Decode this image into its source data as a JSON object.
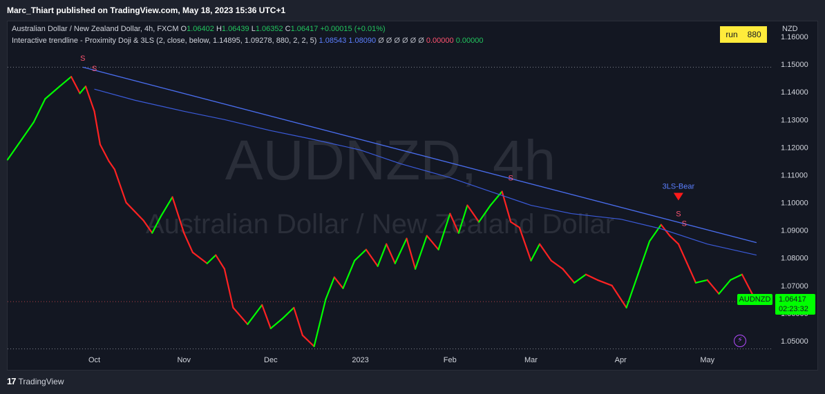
{
  "header": {
    "published": "Marc_Thiart published on TradingView.com, May 18, 2023 15:36 UTC+1"
  },
  "legend": {
    "symbol_desc": "Australian Dollar / New Zealand Dollar, 4h, FXCM",
    "o_label": "O",
    "o_value": "1.06402",
    "h_label": "H",
    "h_value": "1.06439",
    "l_label": "L",
    "l_value": "1.06352",
    "c_label": "C",
    "c_value": "1.06417",
    "change": "+0.00015 (+0.01%)",
    "indicator": "Interactive trendline - Proximity Doji & 3LS (2, close, below, 1.14895, 1.09278, 880, 2, 2, 5)",
    "ind_v1": "1.08543",
    "ind_v2": "1.08090",
    "ind_empty": "Ø Ø Ø Ø Ø Ø",
    "ind_v3": "0.00000",
    "ind_v4": "0.00000"
  },
  "run_badge": {
    "label": "run",
    "value": "880"
  },
  "axis_unit": "NZD",
  "price_tag": {
    "symbol": "AUDNZD",
    "price": "1.06417",
    "countdown": "02:23:32"
  },
  "watermark": {
    "line1": "AUDNZD, 4h",
    "line2": "Australian Dollar / New Zealand Dollar"
  },
  "footer": {
    "brand": "TradingView",
    "logo": "17"
  },
  "colors": {
    "background": "#131722",
    "up": "#00ff00",
    "down": "#ff2222",
    "trendline": "#4a6ef0",
    "ma_line": "#3b5bdb",
    "signal": "#ff5370",
    "badge": "#ffeb3b"
  },
  "chart_data": {
    "type": "line",
    "title": "Australian Dollar / New Zealand Dollar, 4h, FXCM",
    "xlabel": "",
    "ylabel": "NZD",
    "ylim": [
      1.0465,
      1.1655
    ],
    "yticks": [
      1.05,
      1.06,
      1.07,
      1.08,
      1.09,
      1.1,
      1.11,
      1.12,
      1.13,
      1.14,
      1.15,
      1.16
    ],
    "ytick_labels": [
      "1.05000",
      "1.06000",
      "1.07000",
      "1.08000",
      "1.09000",
      "1.10000",
      "1.11000",
      "1.12000",
      "1.13000",
      "1.14000",
      "1.15000",
      "1.16000"
    ],
    "xtick_labels": [
      "Oct",
      "Nov",
      "Dec",
      "2023",
      "Feb",
      "Mar",
      "Apr",
      "May"
    ],
    "xtick_dates": [
      "2022-10-01",
      "2022-11-01",
      "2022-12-01",
      "2023-01-01",
      "2023-02-01",
      "2023-03-01",
      "2023-04-01",
      "2023-05-01"
    ],
    "xlim": [
      "2022-09-01",
      "2023-05-24"
    ],
    "price_series": {
      "dates": [
        "2022-09-01",
        "2022-09-06",
        "2022-09-10",
        "2022-09-14",
        "2022-09-19",
        "2022-09-23",
        "2022-09-26",
        "2022-09-28",
        "2022-10-01",
        "2022-10-03",
        "2022-10-06",
        "2022-10-08",
        "2022-10-12",
        "2022-10-18",
        "2022-10-21",
        "2022-10-24",
        "2022-10-28",
        "2022-11-01",
        "2022-11-04",
        "2022-11-09",
        "2022-11-12",
        "2022-11-15",
        "2022-11-18",
        "2022-11-23",
        "2022-11-28",
        "2022-12-01",
        "2022-12-05",
        "2022-12-09",
        "2022-12-12",
        "2022-12-16",
        "2022-12-20",
        "2022-12-23",
        "2022-12-26",
        "2022-12-30",
        "2023-01-03",
        "2023-01-07",
        "2023-01-10",
        "2023-01-13",
        "2023-01-17",
        "2023-01-20",
        "2023-01-24",
        "2023-01-28",
        "2023-02-01",
        "2023-02-04",
        "2023-02-07",
        "2023-02-11",
        "2023-02-15",
        "2023-02-19",
        "2023-02-22",
        "2023-02-25",
        "2023-03-01",
        "2023-03-04",
        "2023-03-08",
        "2023-03-12",
        "2023-03-16",
        "2023-03-20",
        "2023-03-24",
        "2023-03-29",
        "2023-04-03",
        "2023-04-07",
        "2023-04-11",
        "2023-04-15",
        "2023-04-18",
        "2023-04-21",
        "2023-04-24",
        "2023-04-27",
        "2023-05-01",
        "2023-05-05",
        "2023-05-09",
        "2023-05-13",
        "2023-05-18"
      ],
      "values": [
        1.1155,
        1.123,
        1.129,
        1.1375,
        1.142,
        1.1455,
        1.1395,
        1.142,
        1.133,
        1.121,
        1.115,
        1.112,
        1.1,
        1.0935,
        1.089,
        1.095,
        1.102,
        1.089,
        1.082,
        1.078,
        1.081,
        1.076,
        1.062,
        1.056,
        1.063,
        1.0545,
        1.058,
        1.062,
        1.052,
        1.048,
        1.065,
        1.073,
        1.069,
        1.079,
        1.083,
        1.077,
        1.085,
        1.078,
        1.087,
        1.076,
        1.088,
        1.083,
        1.096,
        1.089,
        1.099,
        1.093,
        1.099,
        1.104,
        1.093,
        1.091,
        1.079,
        1.085,
        1.079,
        1.076,
        1.071,
        1.074,
        1.072,
        1.07,
        1.062,
        1.074,
        1.086,
        1.092,
        1.088,
        1.085,
        1.078,
        1.071,
        1.072,
        1.067,
        1.072,
        1.074,
        1.064
      ]
    },
    "ma_series": {
      "name": "",
      "dates": [
        "2022-10-01",
        "2022-10-15",
        "2022-11-01",
        "2022-11-15",
        "2022-12-01",
        "2022-12-15",
        "2023-01-01",
        "2023-01-15",
        "2023-02-01",
        "2023-02-15",
        "2023-03-01",
        "2023-03-15",
        "2023-04-01",
        "2023-04-15",
        "2023-05-01",
        "2023-05-18"
      ],
      "values": [
        1.141,
        1.137,
        1.133,
        1.13,
        1.126,
        1.123,
        1.119,
        1.114,
        1.109,
        1.104,
        1.099,
        1.096,
        1.094,
        1.0905,
        1.085,
        1.081
      ]
    },
    "trendline": {
      "x": [
        "2022-09-27",
        "2023-05-18"
      ],
      "y": [
        1.14895,
        1.0855
      ]
    },
    "horizontal_lines": [
      1.14895,
      1.06417,
      1.0471
    ],
    "annotations": [
      {
        "date": "2022-09-27",
        "price": 1.1513,
        "text": "S"
      },
      {
        "date": "2022-10-01",
        "price": 1.1475,
        "text": "S"
      },
      {
        "date": "2023-02-22",
        "price": 1.108,
        "text": "S"
      },
      {
        "date": "2023-04-21",
        "price": 1.095,
        "text": "S"
      },
      {
        "date": "2023-04-23",
        "price": 1.0915,
        "text": "S"
      },
      {
        "date": "2023-04-21",
        "price": 1.1,
        "text": "3LS-Bear"
      }
    ]
  }
}
